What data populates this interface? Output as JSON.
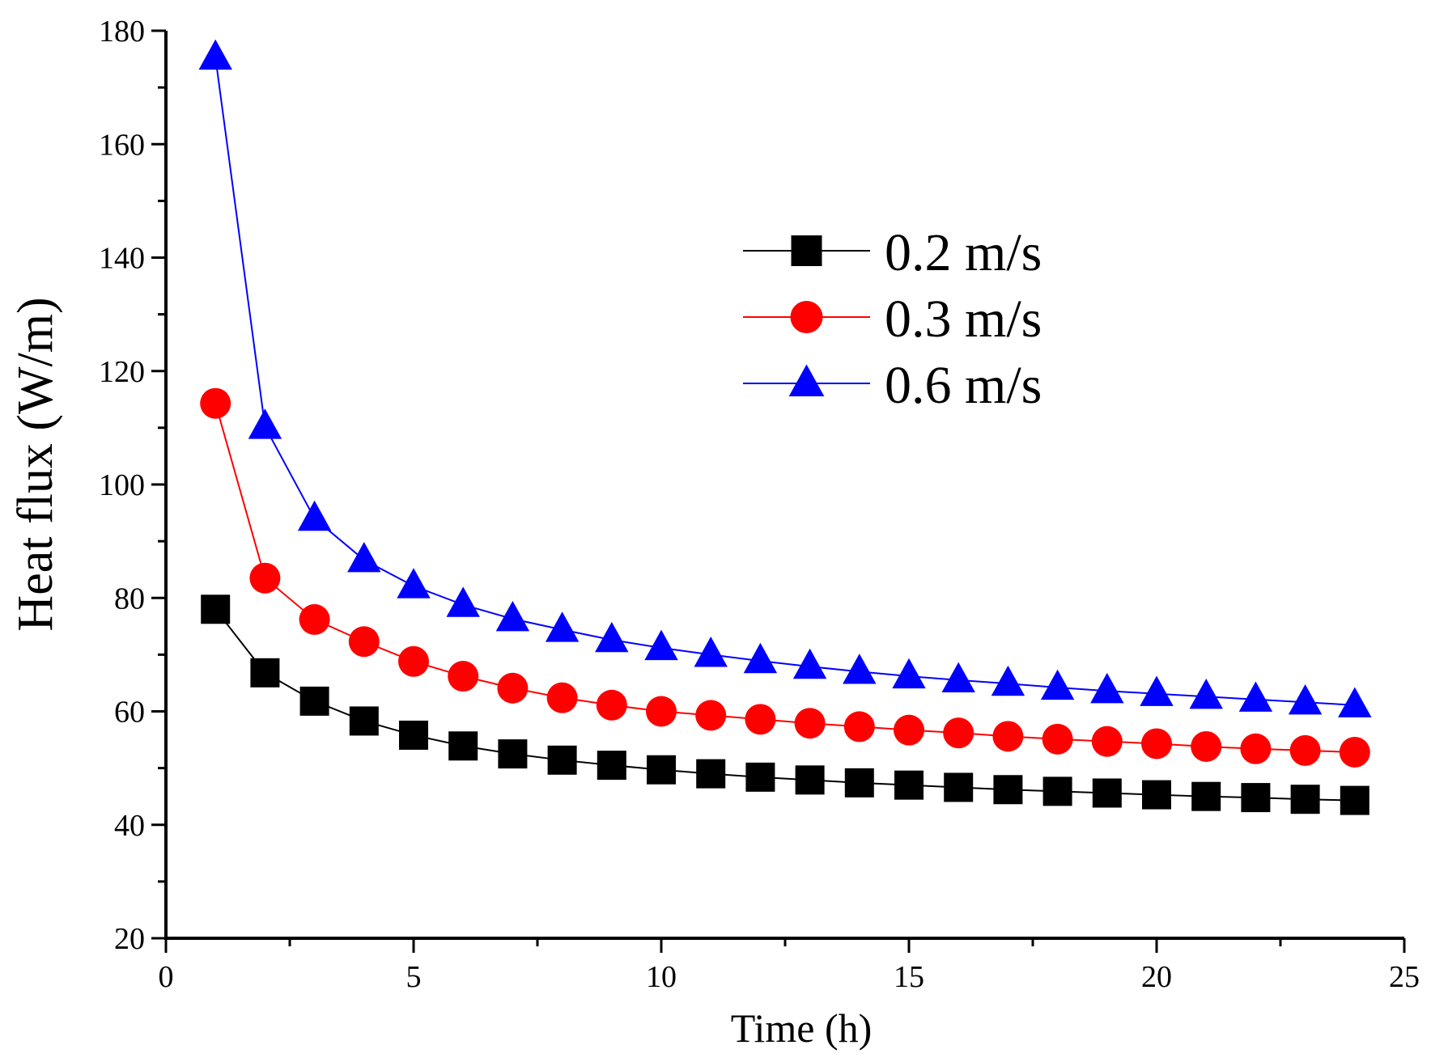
{
  "chart_data": {
    "type": "line",
    "title": "",
    "xlabel": "Time (h)",
    "ylabel": "Heat flux (W/m)",
    "xlim": [
      0,
      25
    ],
    "ylim": [
      20,
      180
    ],
    "xticks": [
      0,
      5,
      10,
      15,
      20,
      25
    ],
    "yticks": [
      20,
      40,
      60,
      80,
      100,
      120,
      140,
      160,
      180
    ],
    "grid": false,
    "legend_position": "upper-right",
    "x": [
      1,
      2,
      3,
      4,
      5,
      6,
      7,
      8,
      9,
      10,
      11,
      12,
      13,
      14,
      15,
      16,
      17,
      18,
      19,
      20,
      21,
      22,
      23,
      24
    ],
    "series": [
      {
        "name": "0.2 m/s",
        "color": "#000000",
        "marker": "square",
        "values": [
          78,
          66.8,
          61.8,
          58.3,
          55.8,
          53.9,
          52.5,
          51.4,
          50.5,
          49.7,
          49.0,
          48.4,
          47.9,
          47.4,
          47.0,
          46.6,
          46.2,
          45.9,
          45.6,
          45.3,
          45.0,
          44.8,
          44.5,
          44.3
        ]
      },
      {
        "name": "0.3 m/s",
        "color": "#ff0000",
        "marker": "circle",
        "values": [
          114.3,
          83.5,
          76.2,
          72.3,
          68.8,
          66.2,
          64.1,
          62.4,
          61.1,
          60.0,
          59.3,
          58.6,
          57.9,
          57.3,
          56.7,
          56.2,
          55.6,
          55.1,
          54.7,
          54.3,
          53.8,
          53.4,
          53.1,
          52.8
        ]
      },
      {
        "name": "0.6 m/s",
        "color": "#0000ff",
        "marker": "triangle",
        "values": [
          175.3,
          110.2,
          94.0,
          86.7,
          82.1,
          78.8,
          76.3,
          74.4,
          72.6,
          71.2,
          70.0,
          68.9,
          67.9,
          67.0,
          66.2,
          65.5,
          64.9,
          64.2,
          63.6,
          63.1,
          62.6,
          62.1,
          61.6,
          61.1
        ]
      }
    ]
  }
}
